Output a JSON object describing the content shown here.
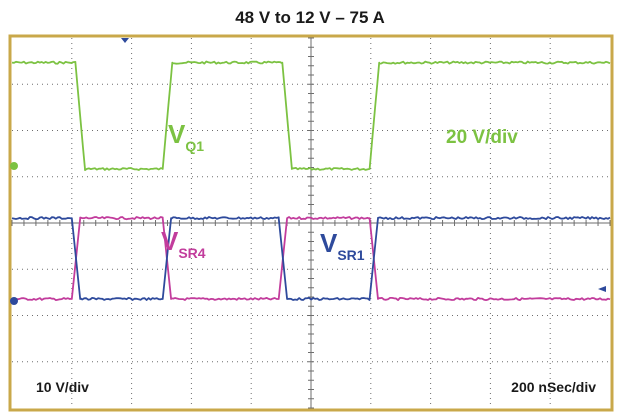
{
  "title": "48 V to 12 V – 75 A",
  "colors": {
    "frame": "#c9a84a",
    "grid": "#6e6e6e",
    "green": "#7cc242",
    "magenta": "#c23c9c",
    "blue": "#2e4a9c"
  },
  "labels": {
    "vq1_main": "V",
    "vq1_sub": "Q1",
    "vsr4_main": "V",
    "vsr4_sub": "SR4",
    "vsr1_main": "V",
    "vsr1_sub": "SR1",
    "scale_top": "20 V/div",
    "scale_left": "10 V/div",
    "timebase": "200 nSec/div"
  },
  "chart_data": {
    "type": "line",
    "title": "48 V to 12 V – 75 A",
    "x_unit": "div",
    "x_divisions": 10,
    "y_divisions": 8,
    "grid": true,
    "series": [
      {
        "name": "VQ1",
        "color": "#7cc242",
        "x": [
          0,
          1.06,
          1.22,
          2.52,
          2.68,
          4.52,
          4.68,
          5.98,
          6.14,
          10
        ],
        "y": [
          2.3,
          2.3,
          0,
          0,
          2.3,
          2.3,
          0,
          0,
          2.3,
          2.3
        ]
      },
      {
        "name": "VSR4",
        "color": "#c23c9c",
        "x": [
          0,
          1.0,
          1.14,
          2.52,
          2.66,
          4.46,
          4.6,
          5.98,
          6.12,
          10
        ],
        "y": [
          0,
          0,
          1.75,
          1.75,
          0,
          0,
          1.75,
          1.75,
          0,
          0
        ]
      },
      {
        "name": "VSR1",
        "color": "#2e4a9c",
        "x": [
          0,
          1.0,
          1.14,
          2.52,
          2.66,
          4.46,
          4.6,
          5.98,
          6.12,
          10
        ],
        "y": [
          1.75,
          1.75,
          0,
          0,
          1.75,
          1.75,
          0,
          0,
          1.75,
          1.75
        ]
      }
    ]
  }
}
